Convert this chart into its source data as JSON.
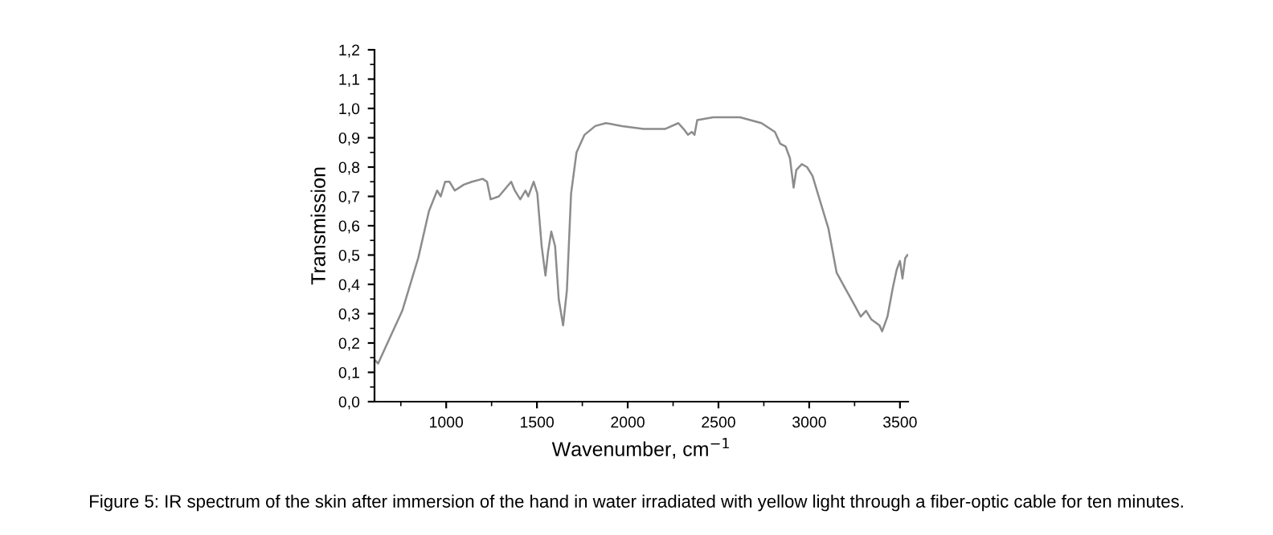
{
  "chart_data": {
    "type": "line",
    "xlabel": "Wavenumber, cm$^{−1}$",
    "ylabel": "Transmission",
    "annotations": [
      "Figure 5: IR spectrum of the skin after immersion of the hand in water irradiated with yellow light through a fiber-optic cable for ten minutes."
    ],
    "series": [
      {
        "color": "#8c8c8c",
        "x": [
          610,
          625,
          684,
          758,
          846,
          905,
          950,
          970,
          994,
          1018,
          1047,
          1097,
          1142,
          1201,
          1225,
          1245,
          1290,
          1358,
          1378,
          1408,
          1437,
          1452,
          1482,
          1502,
          1526,
          1547,
          1561,
          1579,
          1600,
          1620,
          1644,
          1665,
          1688,
          1718,
          1762,
          1821,
          1880,
          1969,
          2087,
          2205,
          2279,
          2308,
          2332,
          2353,
          2368,
          2383,
          2471,
          2619,
          2737,
          2811,
          2840,
          2870,
          2894,
          2914,
          2929,
          2959,
          2988,
          3018,
          3062,
          3106,
          3151,
          3195,
          3240,
          3284,
          3313,
          3343,
          3387,
          3402,
          3431,
          3461,
          3482,
          3500,
          3514,
          3529,
          3541
        ],
        "values": [
          0.14,
          0.13,
          0.21,
          0.31,
          0.49,
          0.65,
          0.72,
          0.7,
          0.75,
          0.75,
          0.72,
          0.74,
          0.75,
          0.76,
          0.75,
          0.69,
          0.7,
          0.75,
          0.72,
          0.69,
          0.72,
          0.7,
          0.75,
          0.71,
          0.53,
          0.43,
          0.51,
          0.58,
          0.53,
          0.35,
          0.26,
          0.38,
          0.71,
          0.85,
          0.91,
          0.94,
          0.95,
          0.94,
          0.93,
          0.93,
          0.95,
          0.93,
          0.91,
          0.92,
          0.91,
          0.96,
          0.97,
          0.97,
          0.95,
          0.92,
          0.88,
          0.87,
          0.83,
          0.73,
          0.79,
          0.81,
          0.8,
          0.77,
          0.68,
          0.59,
          0.44,
          0.39,
          0.34,
          0.29,
          0.31,
          0.28,
          0.26,
          0.24,
          0.29,
          0.39,
          0.45,
          0.48,
          0.42,
          0.49,
          0.5
        ]
      }
    ],
    "xlim": [
      605,
      3545
    ],
    "xticks": [
      1000,
      1500,
      2000,
      2500,
      3000,
      3500
    ],
    "ylim": [
      0,
      1.2
    ],
    "yticks": [
      {
        "value": 0,
        "label": "0,0"
      },
      {
        "value": 0.1,
        "label": "0,1"
      },
      {
        "value": 0.2,
        "label": "0,2"
      },
      {
        "value": 0.3,
        "label": "0,3"
      },
      {
        "value": 0.4,
        "label": "0,4"
      },
      {
        "value": 0.5,
        "label": "0,5"
      },
      {
        "value": 0.6,
        "label": "0,6"
      },
      {
        "value": 0.7,
        "label": "0,7"
      },
      {
        "value": 0.8,
        "label": "0,8"
      },
      {
        "value": 0.9,
        "label": "0,9"
      },
      {
        "value": 1.0,
        "label": "1,0"
      },
      {
        "value": 1.1,
        "label": "1,1"
      },
      {
        "value": 1.2,
        "label": "1,2"
      }
    ],
    "grid": false,
    "legend": false,
    "marker": "none",
    "line_style": "solid"
  }
}
